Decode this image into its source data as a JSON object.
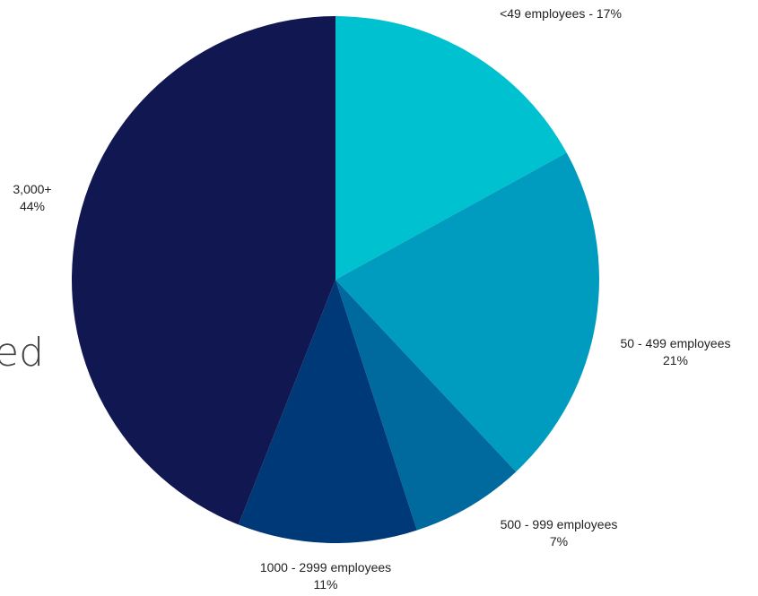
{
  "background_text": "ed",
  "chart_data": {
    "type": "pie",
    "title": "",
    "start_angle_deg": 0,
    "direction": "clockwise",
    "slices": [
      {
        "label": "<49 employees - 17%",
        "label_lines": [
          "<49 employees - 17%"
        ],
        "value": 17,
        "color": "#00C1CF"
      },
      {
        "label": "50 - 499 employees 21%",
        "label_lines": [
          "50 - 499 employees",
          "21%"
        ],
        "value": 21,
        "color": "#009CBF"
      },
      {
        "label": "500 - 999 employees 7%",
        "label_lines": [
          "500 - 999 employees",
          "7%"
        ],
        "value": 7,
        "color": "#006A9F"
      },
      {
        "label": "1000 - 2999 employees 11%",
        "label_lines": [
          "1000 - 2999 employees",
          "11%"
        ],
        "value": 11,
        "color": "#003978"
      },
      {
        "label": "3,000+ 44%",
        "label_lines": [
          "3,000+",
          "44%"
        ],
        "value": 44,
        "color": "#111750"
      }
    ]
  }
}
